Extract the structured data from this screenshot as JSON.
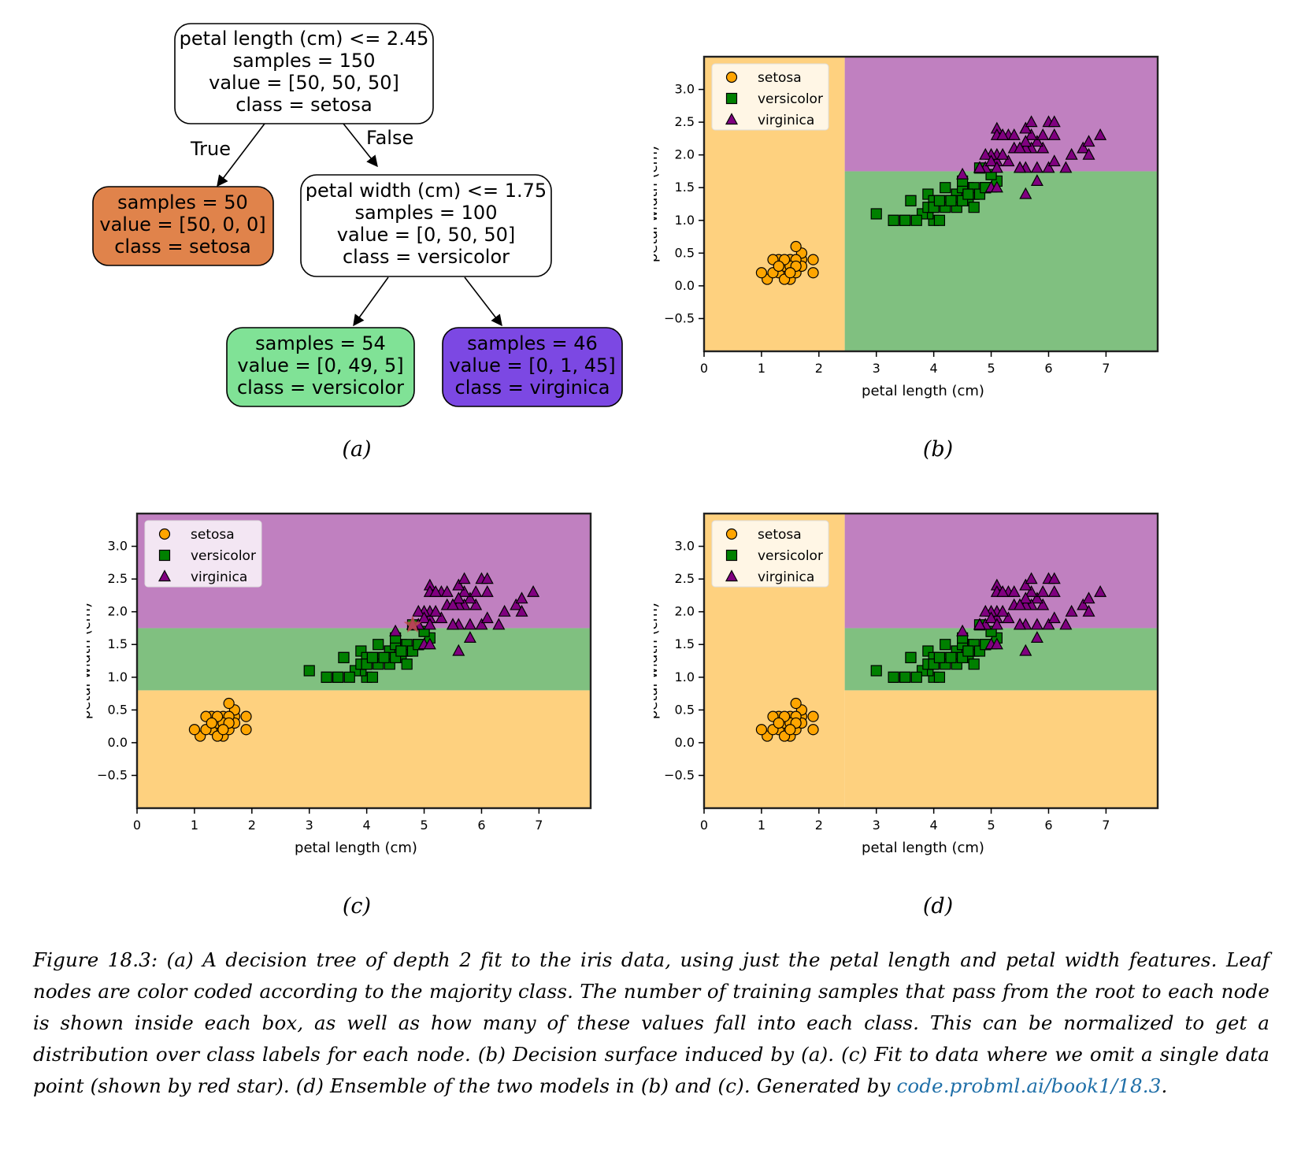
{
  "tree": {
    "edge_true": "True",
    "edge_false": "False",
    "nodes": [
      {
        "id": "root",
        "lines": [
          "petal length (cm) <= 2.45",
          "samples = 150",
          "value = [50, 50, 50]",
          "class = setosa"
        ],
        "fill": "#ffffff"
      },
      {
        "id": "left",
        "lines": [
          "samples = 50",
          "value = [50, 0, 0]",
          "class = setosa"
        ],
        "fill": "#e0834b"
      },
      {
        "id": "right",
        "lines": [
          "petal width (cm) <= 1.75",
          "samples = 100",
          "value = [0, 50, 50]",
          "class = versicolor"
        ],
        "fill": "#ffffff"
      },
      {
        "id": "leaf-versicolor",
        "lines": [
          "samples = 54",
          "value = [0, 49, 5]",
          "class = versicolor"
        ],
        "fill": "#80e296"
      },
      {
        "id": "leaf-virginica",
        "lines": [
          "samples = 46",
          "value = [0, 1, 45]",
          "class = virginica"
        ],
        "fill": "#7c48e3"
      }
    ]
  },
  "subfigure_labels": [
    "(a)",
    "(b)",
    "(c)",
    "(d)"
  ],
  "caption": {
    "text": "Figure 18.3: (a) A decision tree of depth 2 fit to the iris data, using just the petal length and petal width features. Leaf nodes are color coded according to the majority class. The number of training samples that pass from the root to each node is shown inside each box, as well as how many of these values fall into each class. This can be normalized to get a distribution over class labels for each node. (b) Decision surface induced by (a). (c) Fit to data where we omit a single data point (shown by red star). (d) Ensemble of the two models in (b) and (c). Generated by ",
    "link": "code.probml.ai/book1/18.3",
    "end": "."
  },
  "colors": {
    "setosa_region": "#fed17f",
    "versicolor_region": "#80c080",
    "virginica_region": "#c080c0",
    "setosa_marker": "#ffa500",
    "versicolor_marker": "#008000",
    "virginica_marker": "#800080",
    "star": "#c0504d"
  },
  "chart_data": [
    {
      "id": "b",
      "type": "scatter",
      "xlabel": "petal length (cm)",
      "ylabel": "petal width (cm)",
      "xlim": [
        0,
        7.9
      ],
      "ylim": [
        -1.0,
        3.5
      ],
      "xticks": [
        0,
        1,
        2,
        3,
        4,
        5,
        6,
        7
      ],
      "yticks": [
        -0.5,
        0.0,
        0.5,
        1.0,
        1.5,
        2.0,
        2.5,
        3.0
      ],
      "legend": [
        "setosa",
        "versicolor",
        "virginica"
      ],
      "legend_position": "top-left",
      "regions": [
        {
          "class": "setosa",
          "x": [
            0,
            2.45
          ],
          "y": [
            -1.0,
            3.5
          ]
        },
        {
          "class": "versicolor",
          "x": [
            2.45,
            7.9
          ],
          "y": [
            -1.0,
            1.75
          ]
        },
        {
          "class": "virginica",
          "x": [
            2.45,
            7.9
          ],
          "y": [
            1.75,
            3.5
          ]
        }
      ]
    },
    {
      "id": "c",
      "type": "scatter",
      "xlabel": "petal length (cm)",
      "ylabel": "petal width (cm)",
      "xlim": [
        0,
        7.9
      ],
      "ylim": [
        -1.0,
        3.5
      ],
      "xticks": [
        0,
        1,
        2,
        3,
        4,
        5,
        6,
        7
      ],
      "yticks": [
        -0.5,
        0.0,
        0.5,
        1.0,
        1.5,
        2.0,
        2.5,
        3.0
      ],
      "legend": [
        "setosa",
        "versicolor",
        "virginica"
      ],
      "legend_position": "top-left",
      "regions": [
        {
          "class": "setosa",
          "x": [
            0,
            7.9
          ],
          "y": [
            -1.0,
            0.8
          ]
        },
        {
          "class": "versicolor",
          "x": [
            0,
            7.9
          ],
          "y": [
            0.8,
            1.75
          ]
        },
        {
          "class": "virginica",
          "x": [
            0,
            7.9
          ],
          "y": [
            1.75,
            3.5
          ]
        }
      ],
      "star": {
        "x": 4.8,
        "y": 1.8
      }
    },
    {
      "id": "d",
      "type": "scatter",
      "xlabel": "petal length (cm)",
      "ylabel": "petal width (cm)",
      "xlim": [
        0,
        7.9
      ],
      "ylim": [
        -1.0,
        3.5
      ],
      "xticks": [
        0,
        1,
        2,
        3,
        4,
        5,
        6,
        7
      ],
      "yticks": [
        -0.5,
        0.0,
        0.5,
        1.0,
        1.5,
        2.0,
        2.5,
        3.0
      ],
      "legend": [
        "setosa",
        "versicolor",
        "virginica"
      ],
      "legend_position": "top-left",
      "regions": [
        {
          "class": "setosa",
          "x": [
            0,
            2.45
          ],
          "y": [
            -1.0,
            3.5
          ]
        },
        {
          "class": "setosa",
          "x": [
            2.45,
            7.9
          ],
          "y": [
            -1.0,
            0.8
          ]
        },
        {
          "class": "versicolor",
          "x": [
            2.45,
            7.9
          ],
          "y": [
            0.8,
            1.75
          ]
        },
        {
          "class": "virginica",
          "x": [
            2.45,
            7.9
          ],
          "y": [
            1.75,
            3.5
          ]
        }
      ]
    }
  ],
  "iris_points": {
    "setosa": [
      [
        1.4,
        0.2
      ],
      [
        1.3,
        0.2
      ],
      [
        1.5,
        0.2
      ],
      [
        1.7,
        0.4
      ],
      [
        1.4,
        0.3
      ],
      [
        1.5,
        0.1
      ],
      [
        1.6,
        0.2
      ],
      [
        1.1,
        0.1
      ],
      [
        1.2,
        0.2
      ],
      [
        1.3,
        0.4
      ],
      [
        1.7,
        0.3
      ],
      [
        1.5,
        0.4
      ],
      [
        1.0,
        0.2
      ],
      [
        1.7,
        0.5
      ],
      [
        1.9,
        0.2
      ],
      [
        1.6,
        0.4
      ],
      [
        1.5,
        0.3
      ],
      [
        1.4,
        0.1
      ],
      [
        1.6,
        0.6
      ],
      [
        1.9,
        0.4
      ],
      [
        1.2,
        0.4
      ],
      [
        1.4,
        0.4
      ],
      [
        1.6,
        0.3
      ],
      [
        1.3,
        0.3
      ],
      [
        1.5,
        0.2
      ]
    ],
    "versicolor": [
      [
        4.7,
        1.4
      ],
      [
        4.5,
        1.5
      ],
      [
        4.9,
        1.5
      ],
      [
        4.0,
        1.3
      ],
      [
        4.6,
        1.5
      ],
      [
        3.3,
        1.0
      ],
      [
        4.6,
        1.3
      ],
      [
        3.9,
        1.4
      ],
      [
        3.5,
        1.0
      ],
      [
        4.2,
        1.5
      ],
      [
        4.0,
        1.0
      ],
      [
        4.7,
        1.4
      ],
      [
        3.6,
        1.3
      ],
      [
        4.4,
        1.4
      ],
      [
        4.1,
        1.0
      ],
      [
        4.5,
        1.5
      ],
      [
        3.9,
        1.1
      ],
      [
        4.8,
        1.8
      ],
      [
        4.0,
        1.3
      ],
      [
        4.9,
        1.5
      ],
      [
        4.7,
        1.2
      ],
      [
        4.3,
        1.3
      ],
      [
        4.4,
        1.4
      ],
      [
        5.0,
        1.7
      ],
      [
        4.5,
        1.5
      ],
      [
        3.5,
        1.0
      ],
      [
        3.8,
        1.1
      ],
      [
        3.7,
        1.0
      ],
      [
        3.9,
        1.2
      ],
      [
        5.1,
        1.6
      ],
      [
        4.5,
        1.6
      ],
      [
        4.7,
        1.5
      ],
      [
        4.4,
        1.3
      ],
      [
        4.1,
        1.3
      ],
      [
        4.0,
        1.2
      ],
      [
        4.4,
        1.2
      ],
      [
        4.6,
        1.4
      ],
      [
        4.0,
        1.2
      ],
      [
        3.3,
        1.0
      ],
      [
        4.2,
        1.3
      ],
      [
        4.2,
        1.2
      ],
      [
        4.3,
        1.3
      ],
      [
        3.0,
        1.1
      ],
      [
        4.1,
        1.3
      ],
      [
        4.8,
        1.4
      ],
      [
        5.0,
        1.7
      ],
      [
        4.5,
        1.3
      ],
      [
        3.6,
        1.3
      ],
      [
        4.6,
        1.4
      ],
      [
        4.9,
        1.5
      ]
    ],
    "virginica": [
      [
        6.0,
        2.5
      ],
      [
        5.1,
        1.9
      ],
      [
        5.9,
        2.1
      ],
      [
        5.6,
        1.8
      ],
      [
        5.8,
        2.2
      ],
      [
        6.6,
        2.1
      ],
      [
        4.5,
        1.7
      ],
      [
        6.3,
        1.8
      ],
      [
        5.8,
        1.8
      ],
      [
        6.1,
        2.5
      ],
      [
        5.1,
        2.0
      ],
      [
        5.3,
        1.9
      ],
      [
        5.5,
        2.1
      ],
      [
        5.0,
        2.0
      ],
      [
        5.1,
        2.4
      ],
      [
        5.3,
        2.3
      ],
      [
        5.5,
        1.8
      ],
      [
        6.7,
        2.2
      ],
      [
        6.9,
        2.3
      ],
      [
        5.0,
        1.5
      ],
      [
        5.7,
        2.3
      ],
      [
        4.9,
        2.0
      ],
      [
        6.7,
        2.0
      ],
      [
        4.9,
        1.8
      ],
      [
        5.7,
        2.1
      ],
      [
        6.0,
        1.8
      ],
      [
        4.8,
        1.8
      ],
      [
        4.9,
        1.8
      ],
      [
        5.6,
        2.1
      ],
      [
        5.8,
        1.6
      ],
      [
        6.1,
        1.9
      ],
      [
        6.4,
        2.0
      ],
      [
        5.6,
        2.2
      ],
      [
        5.1,
        1.5
      ],
      [
        5.6,
        1.4
      ],
      [
        6.1,
        2.3
      ],
      [
        5.6,
        2.4
      ],
      [
        5.5,
        1.8
      ],
      [
        4.8,
        1.8
      ],
      [
        5.4,
        2.1
      ],
      [
        5.6,
        2.4
      ],
      [
        5.1,
        2.3
      ],
      [
        5.9,
        2.3
      ],
      [
        5.7,
        2.5
      ],
      [
        5.2,
        2.3
      ],
      [
        5.0,
        1.9
      ],
      [
        5.2,
        2.0
      ],
      [
        5.4,
        2.3
      ],
      [
        5.1,
        1.8
      ],
      [
        5.5,
        2.1
      ]
    ]
  }
}
